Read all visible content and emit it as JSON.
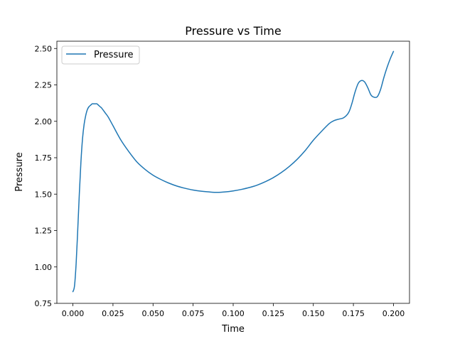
{
  "chart_data": {
    "type": "line",
    "title": "Pressure vs Time",
    "xlabel": "Time",
    "ylabel": "Pressure",
    "xlim": [
      -0.01,
      0.21
    ],
    "ylim": [
      0.75,
      2.55
    ],
    "xticks": [
      0.0,
      0.025,
      0.05,
      0.075,
      0.1,
      0.125,
      0.15,
      0.175,
      0.2
    ],
    "xtick_labels": [
      "0.000",
      "0.025",
      "0.050",
      "0.075",
      "0.100",
      "0.125",
      "0.150",
      "0.175",
      "0.200"
    ],
    "yticks": [
      0.75,
      1.0,
      1.25,
      1.5,
      1.75,
      2.0,
      2.25,
      2.5
    ],
    "ytick_labels": [
      "0.75",
      "1.00",
      "1.25",
      "1.50",
      "1.75",
      "2.00",
      "2.25",
      "2.50"
    ],
    "grid": false,
    "legend": "top-left",
    "series": [
      {
        "name": "Pressure",
        "color": "#1f77b4",
        "x": [
          0.0,
          0.001,
          0.002,
          0.003,
          0.004,
          0.005,
          0.006,
          0.007,
          0.008,
          0.009,
          0.01,
          0.011,
          0.012,
          0.013,
          0.014,
          0.015,
          0.016,
          0.017,
          0.018,
          0.02,
          0.022,
          0.025,
          0.03,
          0.035,
          0.04,
          0.045,
          0.05,
          0.055,
          0.06,
          0.065,
          0.07,
          0.075,
          0.08,
          0.085,
          0.09,
          0.095,
          0.1,
          0.105,
          0.11,
          0.115,
          0.12,
          0.125,
          0.13,
          0.135,
          0.14,
          0.145,
          0.15,
          0.155,
          0.16,
          0.163,
          0.166,
          0.169,
          0.172,
          0.174,
          0.176,
          0.178,
          0.18,
          0.182,
          0.184,
          0.186,
          0.188,
          0.19,
          0.192,
          0.194,
          0.196,
          0.198,
          0.2
        ],
        "y": [
          0.83,
          0.87,
          1.02,
          1.25,
          1.5,
          1.72,
          1.88,
          1.98,
          2.04,
          2.08,
          2.1,
          2.11,
          2.12,
          2.12,
          2.12,
          2.12,
          2.11,
          2.1,
          2.09,
          2.06,
          2.03,
          1.97,
          1.87,
          1.79,
          1.72,
          1.67,
          1.63,
          1.6,
          1.575,
          1.555,
          1.54,
          1.528,
          1.52,
          1.515,
          1.512,
          1.515,
          1.522,
          1.532,
          1.545,
          1.562,
          1.585,
          1.613,
          1.648,
          1.69,
          1.74,
          1.8,
          1.87,
          1.93,
          1.985,
          2.005,
          2.015,
          2.025,
          2.06,
          2.12,
          2.2,
          2.26,
          2.28,
          2.27,
          2.23,
          2.18,
          2.165,
          2.17,
          2.22,
          2.3,
          2.37,
          2.43,
          2.48
        ]
      }
    ]
  }
}
